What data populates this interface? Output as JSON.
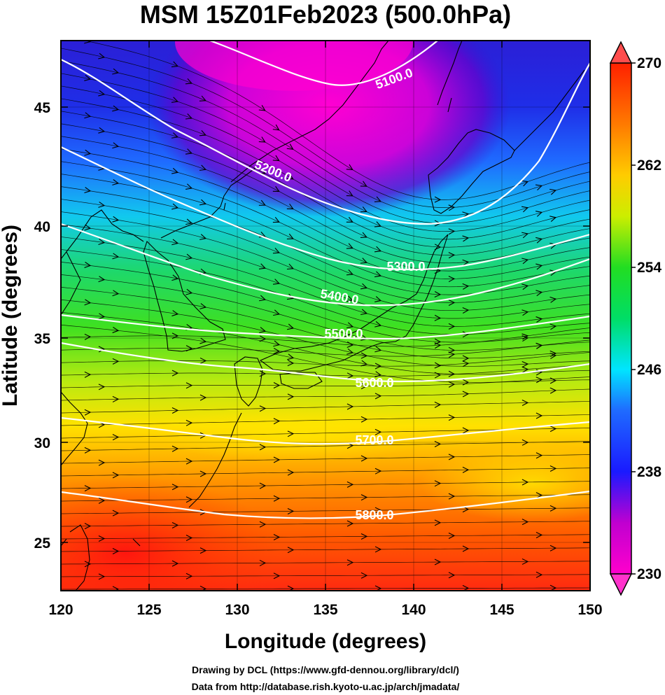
{
  "title": "MSM 15Z01Feb2023 (500.0hPa)",
  "xlabel": "Longitude (degrees)",
  "ylabel": "Latitude  (degrees)",
  "credits": [
    "Drawing by DCL (https://www.gfd-dennou.org/library/dcl/)",
    "Data from http://database.rish.kyoto-u.ac.jp/arch/jmadata/"
  ],
  "x_ticks": [
    "120",
    "125",
    "130",
    "135",
    "140",
    "145",
    "150"
  ],
  "y_ticks": [
    "25",
    "30",
    "35",
    "40",
    "45"
  ],
  "colorbar_ticks": [
    "230",
    "238",
    "246",
    "254",
    "262",
    "270"
  ],
  "contour_labels": [
    "5100.0",
    "5200.0",
    "5300.0",
    "5400.0",
    "5500.0",
    "5600.0",
    "5700.0",
    "5800.0"
  ],
  "map_data": {
    "lon_range": [
      120,
      150
    ],
    "lat_range": [
      22.7,
      47.7
    ],
    "colorbar_range": [
      230,
      270
    ],
    "colors": {
      "magenta": "#ff00cc",
      "purple": "#9900cc",
      "blue": "#1a1aff",
      "cyan": "#00e5ff",
      "green": "#22dd22",
      "yellow": "#ffee00",
      "orange": "#ff8800",
      "red": "#ff2200"
    }
  }
}
